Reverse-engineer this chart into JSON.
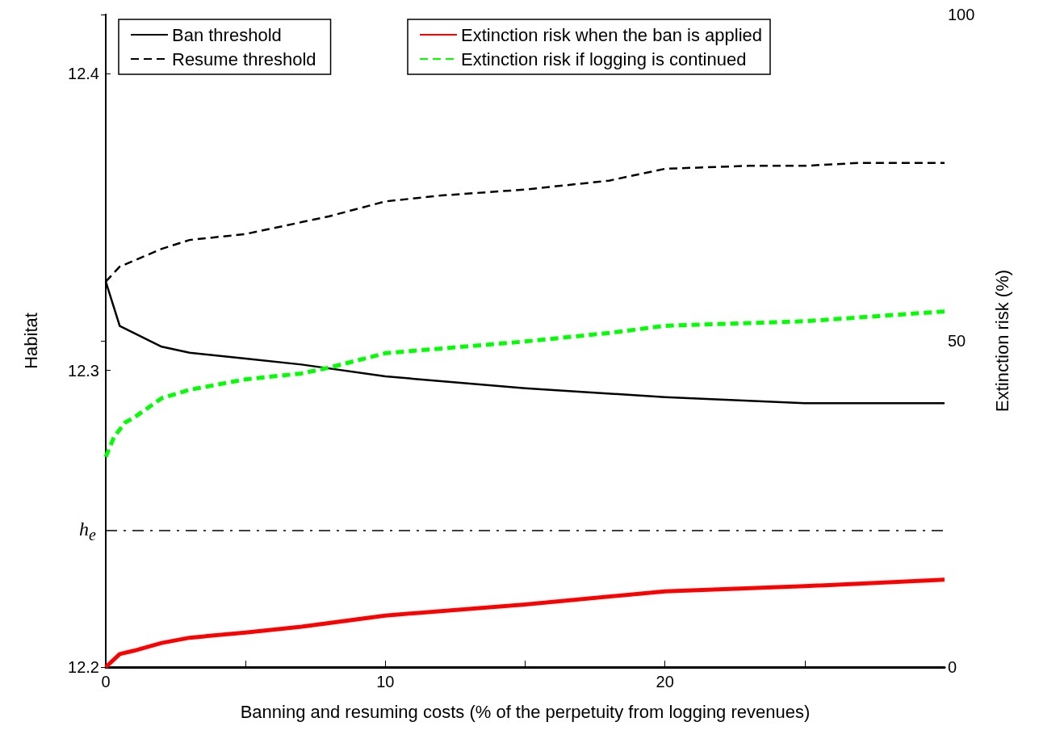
{
  "chart_data": {
    "type": "line",
    "xlabel": "Banning and resuming costs (% of the perpetuity from logging revenues)",
    "ylabel": "Habitat",
    "y2label": "Extinction risk (%)",
    "xlim": [
      0,
      30
    ],
    "xticks": [
      0,
      {
        "value": 5,
        "label": null
      },
      10,
      {
        "value": 15,
        "label": null
      },
      20,
      {
        "value": 25,
        "label": null
      }
    ],
    "ylim": [
      12.2,
      12.42
    ],
    "yticks": [
      12.2,
      12.3,
      12.4
    ],
    "y2lim": [
      0,
      100
    ],
    "y2ticks": [
      0,
      50,
      100
    ],
    "grid": false,
    "legend": "top",
    "marker": "none",
    "ref_lines": [
      {
        "axis": "y",
        "value": 12.246,
        "label": "h$_{e}$",
        "color": "#000000",
        "line_style": "dashed"
      }
    ],
    "series": [
      {
        "name": "Ban threshold",
        "color": "#000000",
        "line_style": "solid",
        "x": [
          0,
          0.5,
          2,
          3,
          5,
          7,
          10,
          15,
          20,
          25,
          27,
          30
        ],
        "values": [
          12.33,
          12.315,
          12.308,
          12.306,
          12.304,
          12.302,
          12.298,
          12.294,
          12.291,
          12.289,
          12.289,
          12.289
        ]
      },
      {
        "name": "Resume threshold",
        "color": "#000000",
        "line_style": "dashed",
        "x": [
          0,
          0.5,
          1,
          2,
          3,
          5,
          7,
          8,
          10,
          12,
          15,
          18,
          20,
          23,
          25,
          27,
          30
        ],
        "values": [
          12.33,
          12.335,
          12.337,
          12.341,
          12.344,
          12.346,
          12.35,
          12.352,
          12.357,
          12.359,
          12.361,
          12.364,
          12.368,
          12.369,
          12.369,
          12.37,
          12.37
        ]
      },
      {
        "name": "Extinction risk when the ban is applied",
        "color": "#ff0000",
        "line_style": "solid",
        "axis": "y2",
        "x": [
          0,
          0.5,
          1,
          2,
          3,
          5,
          7,
          10,
          15,
          20,
          25,
          30
        ],
        "values": [
          0,
          2.0,
          2.5,
          3.7,
          4.5,
          5.3,
          6.2,
          7.9,
          9.6,
          11.6,
          12.4,
          13.4
        ]
      },
      {
        "name": "Extinction risk if logging is continued",
        "color": "#00ff00",
        "line_style": "dashed",
        "axis": "y2",
        "x": [
          0,
          0.3,
          0.7,
          1,
          2,
          3,
          5,
          7,
          8,
          10,
          15,
          18,
          20,
          25,
          30
        ],
        "values": [
          32.2,
          35.3,
          37.5,
          38.2,
          41.2,
          42.5,
          44.1,
          45.0,
          45.9,
          48.1,
          49.9,
          51.2,
          52.3,
          53.0,
          54.5
        ]
      }
    ]
  }
}
